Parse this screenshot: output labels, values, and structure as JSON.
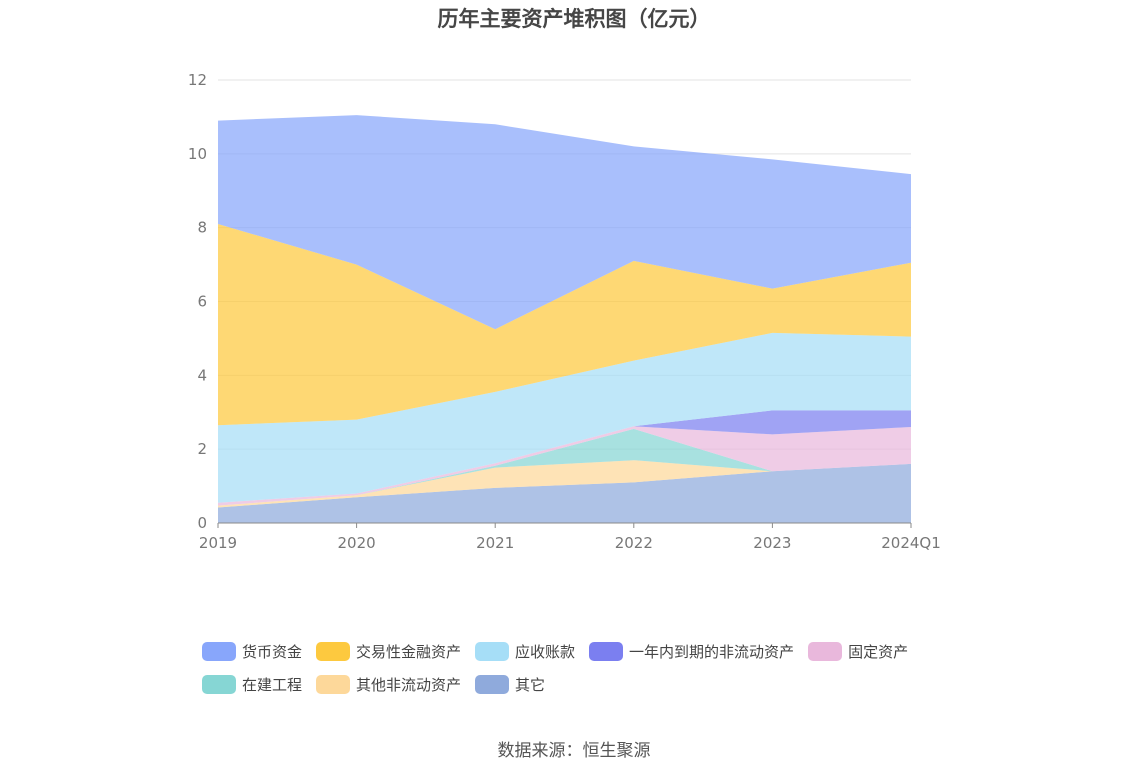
{
  "title": "历年主要资产堆积图（亿元）",
  "source": "数据来源：恒生聚源",
  "chart_data": {
    "type": "area",
    "stacked": true,
    "categories": [
      "2019",
      "2020",
      "2021",
      "2022",
      "2023",
      "2024Q1"
    ],
    "ylim": [
      0,
      12
    ],
    "yticks": [
      0,
      2,
      4,
      6,
      8,
      10,
      12
    ],
    "grid": true,
    "legend_position": "bottom",
    "series": [
      {
        "name": "其它",
        "color": "#8faadc",
        "values": [
          0.42,
          0.7,
          0.95,
          1.1,
          1.4,
          1.6
        ]
      },
      {
        "name": "其他非流动资产",
        "color": "#fdd89a",
        "values": [
          0.05,
          0.05,
          0.55,
          0.6,
          0.0,
          0.0
        ]
      },
      {
        "name": "在建工程",
        "color": "#86d6d4",
        "values": [
          0.0,
          0.0,
          0.05,
          0.85,
          0.0,
          0.0
        ]
      },
      {
        "name": "固定资产",
        "color": "#e9b8dc",
        "values": [
          0.08,
          0.05,
          0.07,
          0.07,
          1.0,
          1.0
        ]
      },
      {
        "name": "一年内到期的非流动资产",
        "color": "#7b7ff0",
        "values": [
          0.0,
          0.0,
          0.0,
          0.0,
          0.65,
          0.45
        ]
      },
      {
        "name": "应收账款",
        "color": "#a6def7",
        "values": [
          2.1,
          2.0,
          1.93,
          1.78,
          2.1,
          2.0
        ]
      },
      {
        "name": "交易性金融资产",
        "color": "#fdc93f",
        "values": [
          5.45,
          4.2,
          1.7,
          2.7,
          1.2,
          2.0
        ]
      },
      {
        "name": "货币资金",
        "color": "#88a6fb",
        "values": [
          2.8,
          4.05,
          5.55,
          3.1,
          3.5,
          2.4
        ]
      }
    ]
  },
  "legend": {
    "row1": [
      "货币资金",
      "交易性金融资产",
      "应收账款",
      "一年内到期的非流动资产",
      "固定资产"
    ],
    "row2": [
      "在建工程",
      "其他非流动资产",
      "其它"
    ]
  }
}
